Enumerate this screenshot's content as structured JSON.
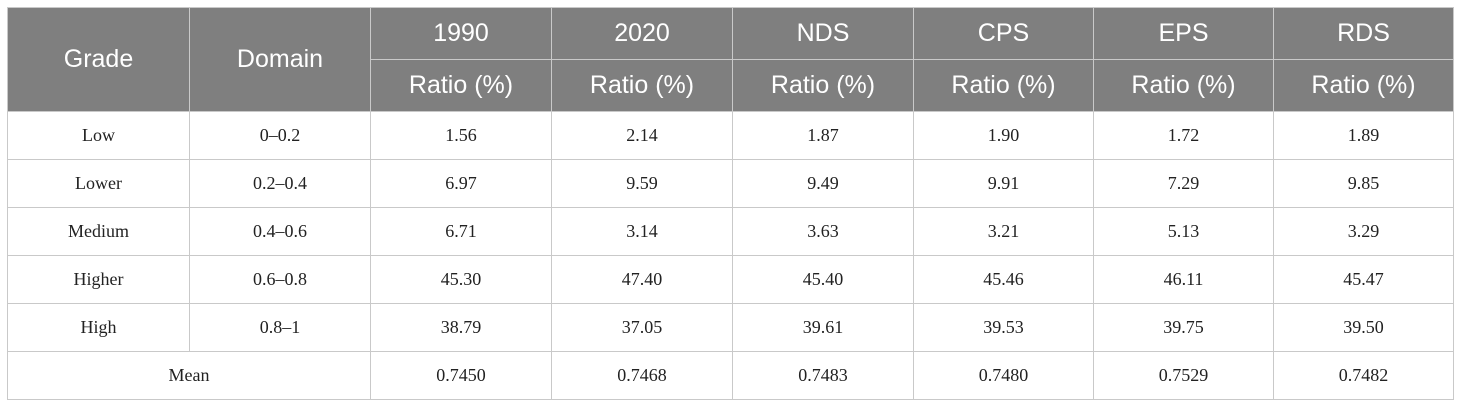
{
  "table": {
    "header": {
      "grade": "Grade",
      "domain": "Domain",
      "columns": [
        "1990",
        "2020",
        "NDS",
        "CPS",
        "EPS",
        "RDS"
      ],
      "subheader": "Ratio (%)"
    },
    "rows": [
      {
        "grade": "Low",
        "domain": "0–0.2",
        "values": [
          "1.56",
          "2.14",
          "1.87",
          "1.90",
          "1.72",
          "1.89"
        ]
      },
      {
        "grade": "Lower",
        "domain": "0.2–0.4",
        "values": [
          "6.97",
          "9.59",
          "9.49",
          "9.91",
          "7.29",
          "9.85"
        ]
      },
      {
        "grade": "Medium",
        "domain": "0.4–0.6",
        "values": [
          "6.71",
          "3.14",
          "3.63",
          "3.21",
          "5.13",
          "3.29"
        ]
      },
      {
        "grade": "Higher",
        "domain": "0.6–0.8",
        "values": [
          "45.30",
          "47.40",
          "45.40",
          "45.46",
          "46.11",
          "45.47"
        ]
      },
      {
        "grade": "High",
        "domain": "0.8–1",
        "values": [
          "38.79",
          "37.05",
          "39.61",
          "39.53",
          "39.75",
          "39.50"
        ]
      }
    ],
    "mean": {
      "label": "Mean",
      "values": [
        "0.7450",
        "0.7468",
        "0.7483",
        "0.7480",
        "0.7529",
        "0.7482"
      ]
    }
  }
}
